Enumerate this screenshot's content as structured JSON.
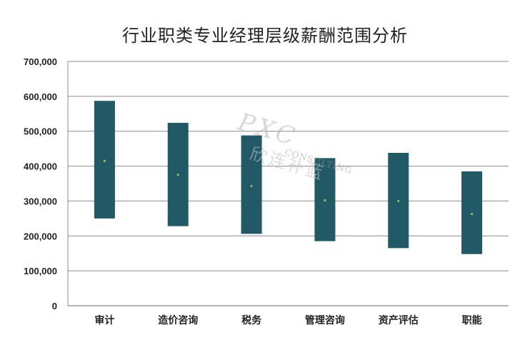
{
  "chart_data": {
    "type": "bar",
    "subtype": "floating-range",
    "title": "行业职类专业经理层级薪酬范围分析",
    "categories": [
      "审计",
      "造价咨询",
      "税务",
      "管理咨询",
      "资产评估",
      "职能"
    ],
    "series": [
      {
        "name": "",
        "role": "low",
        "values": [
          250000,
          228000,
          206000,
          185000,
          165000,
          148000
        ]
      },
      {
        "name": "",
        "role": "high",
        "values": [
          587000,
          524000,
          488000,
          423000,
          438000,
          385000
        ]
      },
      {
        "name": "",
        "role": "mid",
        "values": [
          415000,
          375000,
          343000,
          302000,
          300000,
          263000
        ]
      }
    ],
    "ylim": [
      0,
      700000
    ],
    "yticks": [
      0,
      100000,
      200000,
      300000,
      400000,
      500000,
      600000,
      700000
    ],
    "ytick_labels": [
      "0",
      "100,000",
      "200,000",
      "300,000",
      "400,000",
      "500,000",
      "600,000",
      "700,000"
    ],
    "grid": true,
    "legend": "none",
    "bar_color": "#215967",
    "mid_color": "#9bbb59"
  },
  "watermark": {
    "brand": "PXC",
    "sub": "CONSULTING",
    "cn": "欣连补蓝"
  }
}
